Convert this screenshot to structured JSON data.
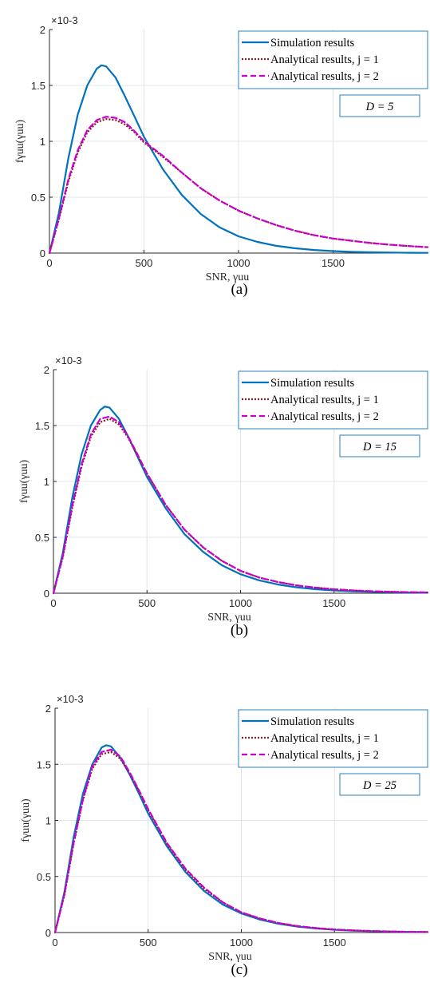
{
  "chart_data": [
    {
      "type": "line",
      "panel_label": "(a)",
      "annotation": "D = 5",
      "xlabel": "SNR, γuu",
      "ylabel": "fγuu(γuu)",
      "y_exponent": "×10-3",
      "xlim": [
        0,
        2000
      ],
      "ylim": [
        0,
        2
      ],
      "xticks": [
        "0",
        "500",
        "1000",
        "1500"
      ],
      "yticks": [
        "0",
        "0.5",
        "1",
        "1.5",
        "2"
      ],
      "grid": true,
      "legend_position": "top-right",
      "series": [
        {
          "name": "Simulation results",
          "color": "#0072BD",
          "style": "solid",
          "x": [
            0,
            50,
            100,
            150,
            200,
            250,
            275,
            300,
            350,
            400,
            450,
            500,
            600,
            700,
            800,
            900,
            1000,
            1100,
            1200,
            1300,
            1400,
            1500,
            1600,
            1700,
            1800,
            1900,
            2000
          ],
          "y": [
            0,
            0.36,
            0.85,
            1.24,
            1.5,
            1.65,
            1.68,
            1.67,
            1.57,
            1.4,
            1.22,
            1.04,
            0.75,
            0.52,
            0.35,
            0.23,
            0.15,
            0.1,
            0.065,
            0.043,
            0.028,
            0.018,
            0.011,
            0.007,
            0.005,
            0.003,
            0.002
          ]
        },
        {
          "name": "Analytical results, j = 1",
          "color": "#8B1A1A",
          "style": "dotted",
          "x": [
            0,
            50,
            100,
            150,
            200,
            250,
            300,
            350,
            400,
            450,
            500,
            600,
            700,
            800,
            900,
            1000,
            1100,
            1200,
            1300,
            1400,
            1500,
            1600,
            1700,
            1800,
            1900,
            2000
          ],
          "y": [
            0,
            0.3,
            0.64,
            0.9,
            1.08,
            1.17,
            1.2,
            1.19,
            1.15,
            1.08,
            0.99,
            0.86,
            0.72,
            0.58,
            0.47,
            0.38,
            0.31,
            0.25,
            0.2,
            0.16,
            0.13,
            0.11,
            0.09,
            0.075,
            0.063,
            0.053
          ]
        },
        {
          "name": "Analytical results, j = 2",
          "color": "#CC00CC",
          "style": "dashed",
          "x": [
            0,
            50,
            100,
            150,
            200,
            250,
            300,
            350,
            400,
            450,
            500,
            600,
            700,
            800,
            900,
            1000,
            1100,
            1200,
            1300,
            1400,
            1500,
            1600,
            1700,
            1800,
            1900,
            2000
          ],
          "y": [
            0,
            0.31,
            0.66,
            0.92,
            1.1,
            1.19,
            1.22,
            1.21,
            1.17,
            1.09,
            1.0,
            0.87,
            0.72,
            0.58,
            0.47,
            0.38,
            0.31,
            0.25,
            0.2,
            0.16,
            0.13,
            0.11,
            0.09,
            0.075,
            0.063,
            0.053
          ]
        }
      ]
    },
    {
      "type": "line",
      "panel_label": "(b)",
      "annotation": "D = 15",
      "xlabel": "SNR, γuu",
      "ylabel": "fγuu(γuu)",
      "y_exponent": "×10-3",
      "xlim": [
        0,
        2000
      ],
      "ylim": [
        0,
        2
      ],
      "xticks": [
        "0",
        "500",
        "1000",
        "1500"
      ],
      "yticks": [
        "0",
        "0.5",
        "1",
        "1.5",
        "2"
      ],
      "grid": true,
      "legend_position": "top-right",
      "series": [
        {
          "name": "Simulation results",
          "color": "#0072BD",
          "style": "solid",
          "x": [
            0,
            50,
            100,
            150,
            200,
            250,
            275,
            300,
            350,
            400,
            450,
            500,
            600,
            700,
            800,
            900,
            1000,
            1100,
            1200,
            1300,
            1400,
            1500,
            1600,
            1700,
            1800,
            1900,
            2000
          ],
          "y": [
            0,
            0.36,
            0.85,
            1.24,
            1.5,
            1.64,
            1.67,
            1.66,
            1.56,
            1.4,
            1.22,
            1.04,
            0.76,
            0.53,
            0.37,
            0.25,
            0.17,
            0.115,
            0.078,
            0.053,
            0.036,
            0.025,
            0.017,
            0.012,
            0.008,
            0.006,
            0.004
          ]
        },
        {
          "name": "Analytical results, j = 1",
          "color": "#8B1A1A",
          "style": "dotted",
          "x": [
            0,
            50,
            100,
            150,
            200,
            250,
            300,
            350,
            400,
            450,
            500,
            600,
            700,
            800,
            900,
            1000,
            1100,
            1200,
            1300,
            1400,
            1500,
            1600,
            1700,
            1800,
            1900,
            2000
          ],
          "y": [
            0,
            0.32,
            0.76,
            1.13,
            1.4,
            1.53,
            1.56,
            1.51,
            1.39,
            1.23,
            1.07,
            0.79,
            0.57,
            0.41,
            0.29,
            0.2,
            0.14,
            0.1,
            0.07,
            0.05,
            0.035,
            0.025,
            0.018,
            0.013,
            0.009,
            0.007
          ]
        },
        {
          "name": "Analytical results, j = 2",
          "color": "#CC00CC",
          "style": "dashed",
          "x": [
            0,
            50,
            100,
            150,
            200,
            250,
            300,
            350,
            400,
            450,
            500,
            600,
            700,
            800,
            900,
            1000,
            1100,
            1200,
            1300,
            1400,
            1500,
            1600,
            1700,
            1800,
            1900,
            2000
          ],
          "y": [
            0,
            0.33,
            0.78,
            1.15,
            1.42,
            1.56,
            1.58,
            1.53,
            1.4,
            1.24,
            1.07,
            0.79,
            0.57,
            0.41,
            0.29,
            0.2,
            0.14,
            0.1,
            0.07,
            0.05,
            0.035,
            0.025,
            0.018,
            0.013,
            0.009,
            0.007
          ]
        }
      ]
    },
    {
      "type": "line",
      "panel_label": "(c)",
      "annotation": "D = 25",
      "xlabel": "SNR, γuu",
      "ylabel": "fγuu(γuu)",
      "y_exponent": "×10-3",
      "xlim": [
        0,
        2000
      ],
      "ylim": [
        0,
        2
      ],
      "xticks": [
        "0",
        "500",
        "1000",
        "1500"
      ],
      "yticks": [
        "0",
        "0.5",
        "1",
        "1.5",
        "2"
      ],
      "grid": true,
      "legend_position": "top-right",
      "series": [
        {
          "name": "Simulation results",
          "color": "#0072BD",
          "style": "solid",
          "x": [
            0,
            50,
            100,
            150,
            200,
            250,
            275,
            300,
            350,
            400,
            450,
            500,
            600,
            700,
            800,
            900,
            1000,
            1100,
            1200,
            1300,
            1400,
            1500,
            1600,
            1700,
            1800,
            1900,
            2000
          ],
          "y": [
            0,
            0.36,
            0.85,
            1.24,
            1.5,
            1.65,
            1.67,
            1.66,
            1.56,
            1.41,
            1.24,
            1.06,
            0.77,
            0.54,
            0.37,
            0.25,
            0.17,
            0.115,
            0.078,
            0.053,
            0.036,
            0.025,
            0.017,
            0.012,
            0.008,
            0.006,
            0.004
          ]
        },
        {
          "name": "Analytical results, j = 1",
          "color": "#8B1A1A",
          "style": "dotted",
          "x": [
            0,
            50,
            100,
            150,
            200,
            250,
            300,
            350,
            400,
            450,
            500,
            600,
            700,
            800,
            900,
            1000,
            1100,
            1200,
            1300,
            1400,
            1500,
            1600,
            1700,
            1800,
            1900,
            2000
          ],
          "y": [
            0,
            0.33,
            0.79,
            1.18,
            1.46,
            1.59,
            1.61,
            1.55,
            1.42,
            1.26,
            1.09,
            0.79,
            0.56,
            0.39,
            0.27,
            0.18,
            0.125,
            0.085,
            0.058,
            0.04,
            0.027,
            0.019,
            0.013,
            0.009,
            0.006,
            0.004
          ]
        },
        {
          "name": "Analytical results, j = 2",
          "color": "#CC00CC",
          "style": "dashed",
          "x": [
            0,
            50,
            100,
            150,
            200,
            250,
            300,
            350,
            400,
            450,
            500,
            600,
            700,
            800,
            900,
            1000,
            1100,
            1200,
            1300,
            1400,
            1500,
            1600,
            1700,
            1800,
            1900,
            2000
          ],
          "y": [
            0,
            0.34,
            0.8,
            1.19,
            1.48,
            1.61,
            1.63,
            1.57,
            1.43,
            1.27,
            1.1,
            0.8,
            0.57,
            0.4,
            0.27,
            0.18,
            0.125,
            0.085,
            0.058,
            0.04,
            0.027,
            0.019,
            0.013,
            0.009,
            0.006,
            0.004
          ]
        }
      ]
    }
  ]
}
